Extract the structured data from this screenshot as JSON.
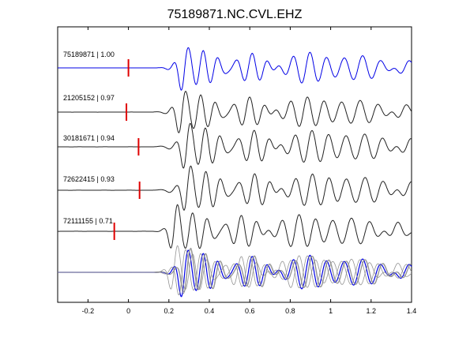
{
  "chart_data": {
    "type": "line",
    "title": "75189871.NC.CVL.EHZ",
    "xlim": [
      -0.35,
      1.4
    ],
    "xticks": [
      -0.2,
      0,
      0.2,
      0.4,
      0.6,
      0.8,
      1,
      1.2,
      1.4
    ],
    "xtick_labels": [
      "-0.2",
      "0",
      "0.2",
      "0.4",
      "0.6",
      "0.8",
      "1",
      "1.2",
      "1.4"
    ],
    "xlabel": "",
    "ylabel": "",
    "grid": false,
    "colors": {
      "reference": "#0000e6",
      "trace": "#222222",
      "pick": "#e00000",
      "overlay": "#888888"
    },
    "traces": [
      {
        "label": "75189871 | 1.00",
        "event_id": "75189871",
        "correlation": 1.0,
        "pick_time": 0.0,
        "reference": true
      },
      {
        "label": "21205152 | 0.97",
        "event_id": "21205152",
        "correlation": 0.97,
        "pick_time": -0.01,
        "reference": false
      },
      {
        "label": "30181671 | 0.94",
        "event_id": "30181671",
        "correlation": 0.94,
        "pick_time": 0.05,
        "reference": false
      },
      {
        "label": "72622415 | 0.93",
        "event_id": "72622415",
        "correlation": 0.93,
        "pick_time": 0.055,
        "reference": false
      },
      {
        "label": "72111155 | 0.71",
        "event_id": "72111155",
        "correlation": 0.71,
        "pick_time": -0.07,
        "reference": false
      }
    ],
    "stack": {
      "label": ""
    }
  }
}
